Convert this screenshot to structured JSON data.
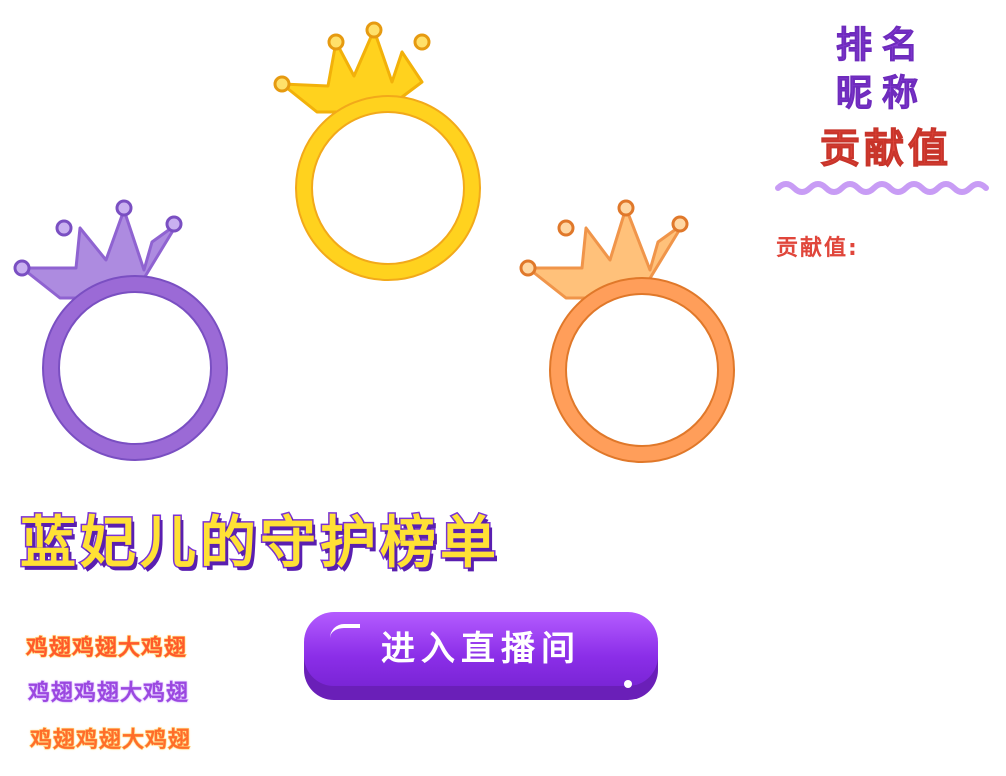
{
  "legend": {
    "rank_label": "排名",
    "nickname_label": "昵称",
    "contribution_label": "贡献值"
  },
  "contribution_field_label": "贡献值:",
  "title": "蓝妃儿的守护榜单",
  "sample_names": [
    "鸡翅鸡翅大鸡翅",
    "鸡翅鸡翅大鸡翅",
    "鸡翅鸡翅大鸡翅"
  ],
  "enter_button_label": "进入直播间",
  "colors": {
    "gold": "#ffd21e",
    "silver_purple": "#9b6ad6",
    "bronze_orange": "#ff9e5a",
    "title_fill": "#ffe135",
    "title_stroke": "#7a33d6",
    "button_purple": "#8b2ee8",
    "contribution_red": "#e0463b"
  }
}
